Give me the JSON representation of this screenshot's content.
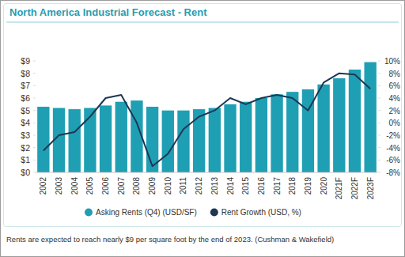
{
  "chart_data": {
    "type": "bar",
    "title": "North America Industrial Forecast - Rent",
    "caption": "Rents are expected to reach nearly $9 per square foot by the end of 2023. (Cushman & Wakefield)",
    "categories": [
      "2002",
      "2003",
      "2004",
      "2005",
      "2006",
      "2007",
      "2008",
      "2009",
      "2010",
      "2011",
      "2012",
      "2013",
      "2014",
      "2015",
      "2016",
      "2017",
      "2018",
      "2019",
      "2020",
      "2021F",
      "2022F",
      "2023F"
    ],
    "series": [
      {
        "name": "Asking Rents (Q4) (USD/SF)",
        "type": "bar",
        "color": "#1f9fb4",
        "values": [
          5.3,
          5.2,
          5.1,
          5.2,
          5.4,
          5.7,
          5.8,
          5.3,
          5.0,
          5.0,
          5.1,
          5.2,
          5.5,
          5.7,
          6.0,
          6.3,
          6.5,
          6.7,
          7.1,
          7.6,
          8.3,
          8.9
        ]
      },
      {
        "name": "Rent Growth (USD, %)",
        "type": "line",
        "axis": "y2",
        "color": "#1c3853",
        "values": [
          -4.5,
          -2.0,
          -1.5,
          1.0,
          4.0,
          4.5,
          0.0,
          -7.0,
          -5.0,
          -1.0,
          1.0,
          2.0,
          4.0,
          3.0,
          4.0,
          4.5,
          4.0,
          2.0,
          6.5,
          8.0,
          7.8,
          5.5
        ]
      }
    ],
    "ylim": [
      0,
      9
    ],
    "yticks": [
      {
        "value": 0,
        "label": "$0"
      },
      {
        "value": 1,
        "label": "$1"
      },
      {
        "value": 2,
        "label": "$2"
      },
      {
        "value": 3,
        "label": "$3"
      },
      {
        "value": 4,
        "label": "$4"
      },
      {
        "value": 5,
        "label": "$5"
      },
      {
        "value": 6,
        "label": "$6"
      },
      {
        "value": 7,
        "label": "$7"
      },
      {
        "value": 8,
        "label": "$8"
      },
      {
        "value": 9,
        "label": "$9"
      }
    ],
    "y2lim": [
      -8,
      10
    ],
    "y2ticks": [
      {
        "value": -8,
        "label": "-8%"
      },
      {
        "value": -6,
        "label": "-6%"
      },
      {
        "value": -4,
        "label": "-4%"
      },
      {
        "value": -2,
        "label": "-2%"
      },
      {
        "value": 0,
        "label": "0%"
      },
      {
        "value": 2,
        "label": "2%"
      },
      {
        "value": 4,
        "label": "4%"
      },
      {
        "value": 6,
        "label": "6%"
      },
      {
        "value": 8,
        "label": "8%"
      },
      {
        "value": 10,
        "label": "10%"
      }
    ],
    "grid": false,
    "legend": "bottom"
  }
}
